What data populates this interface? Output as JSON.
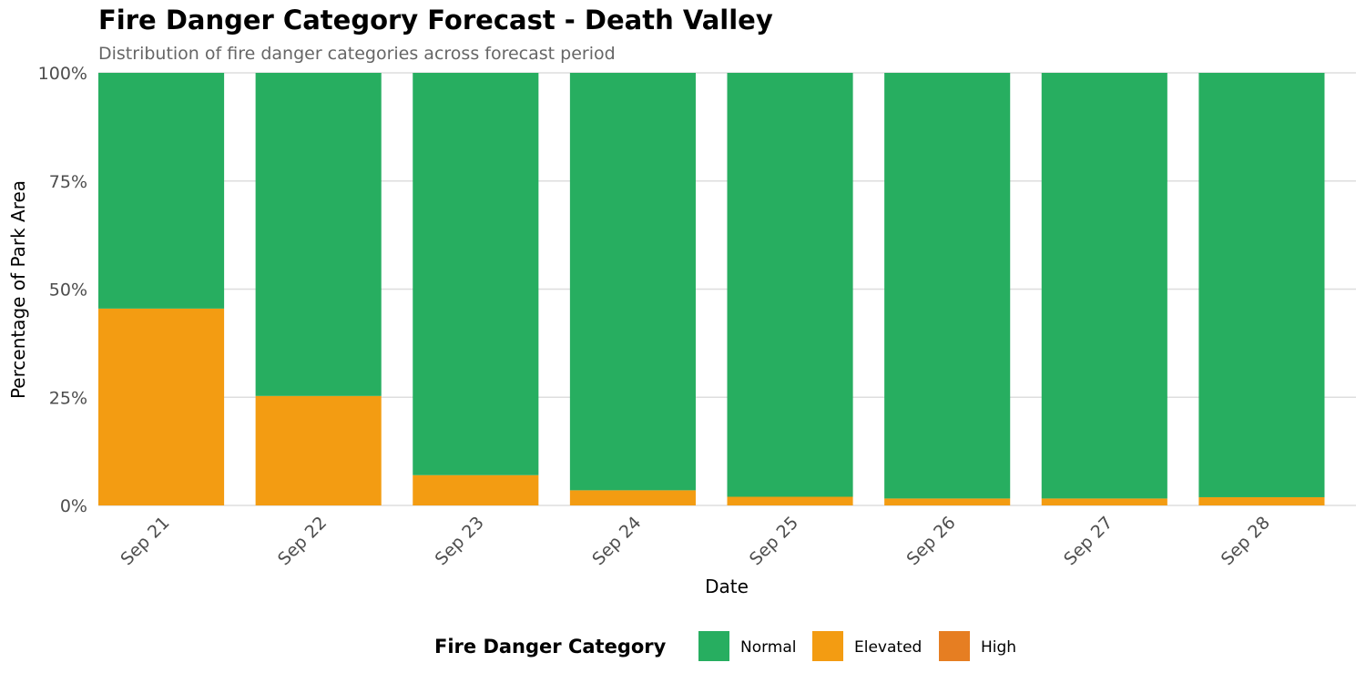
{
  "chart_data": {
    "type": "bar",
    "stacked": true,
    "percent": true,
    "title": "Fire Danger Category Forecast - Death Valley",
    "subtitle": "Distribution of fire danger categories across forecast period",
    "xlabel": "Date",
    "ylabel": "Percentage of Park Area",
    "ylim": [
      0,
      100
    ],
    "y_ticks": [
      0,
      25,
      50,
      75,
      100
    ],
    "y_tick_labels": [
      "0%",
      "25%",
      "50%",
      "75%",
      "100%"
    ],
    "grid": true,
    "categories": [
      "Sep 21",
      "Sep 22",
      "Sep 23",
      "Sep 24",
      "Sep 25",
      "Sep 26",
      "Sep 27",
      "Sep 28"
    ],
    "series": [
      {
        "name": "Elevated",
        "color": "#F39C12",
        "values": [
          45.5,
          25.3,
          7.0,
          3.5,
          2.0,
          1.6,
          1.6,
          1.9
        ]
      },
      {
        "name": "Normal",
        "color": "#27AE60",
        "values": [
          54.5,
          74.7,
          93.0,
          96.5,
          98.0,
          98.4,
          98.4,
          98.1
        ]
      },
      {
        "name": "High",
        "color": "#E67E22",
        "values": [
          0,
          0,
          0,
          0,
          0,
          0,
          0,
          0
        ]
      }
    ],
    "legend": {
      "title": "Fire Danger Category",
      "position": "bottom",
      "items": [
        {
          "label": "Normal",
          "color": "#27AE60"
        },
        {
          "label": "Elevated",
          "color": "#F39C12"
        },
        {
          "label": "High",
          "color": "#E67E22"
        }
      ]
    }
  }
}
